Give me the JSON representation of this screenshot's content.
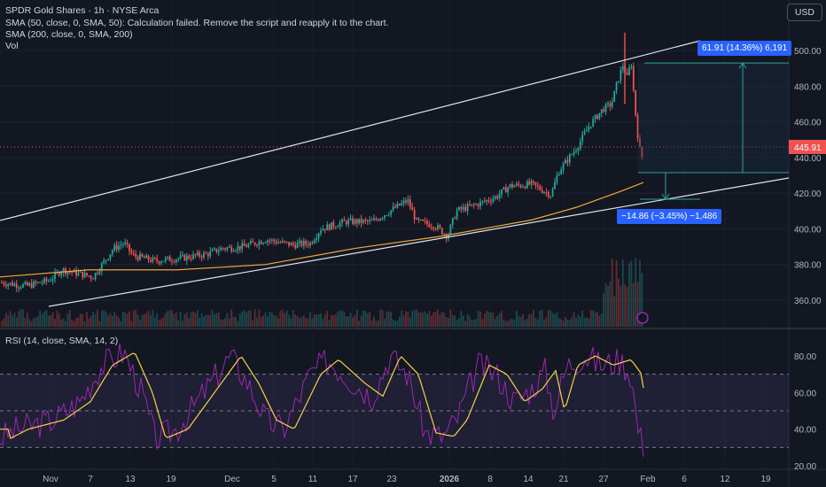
{
  "header": {
    "title": "SPDR Gold Shares · 1h · NYSE Arca",
    "indicators": [
      "SMA (50, close, 0, SMA, 50): Calculation failed. Remove the script and reapply it to the chart.",
      "SMA (200, close, 0, SMA, 200)",
      "Vol"
    ],
    "currency_button": "USD"
  },
  "price_axis": {
    "ticks": [
      "500.00",
      "480.00",
      "460.00",
      "440.00",
      "420.00",
      "400.00",
      "380.00",
      "360.00"
    ],
    "last_price": "445.91"
  },
  "rsi_panel": {
    "label": "RSI (14, close, SMA, 14, 2)",
    "ticks": [
      "80.00",
      "60.00",
      "40.00",
      "20.00"
    ]
  },
  "time_axis": {
    "labels": [
      "Nov",
      "7",
      "13",
      "19",
      "Dec",
      "5",
      "11",
      "17",
      "23",
      "2026",
      "8",
      "14",
      "21",
      "27",
      "Feb",
      "6",
      "12",
      "19"
    ]
  },
  "measure_tool": {
    "up_label": "61.91 (14.36%) 6,191",
    "down_label": "−14.86 (−3.45%) −1,486"
  },
  "colors": {
    "background": "#131722",
    "up": "#26a69a",
    "down": "#ef5350",
    "sma200": "#f0a73a",
    "rsi_line": "#9c27b0",
    "rsi_ma": "#f5d147",
    "measure": "#2962ff"
  }
}
